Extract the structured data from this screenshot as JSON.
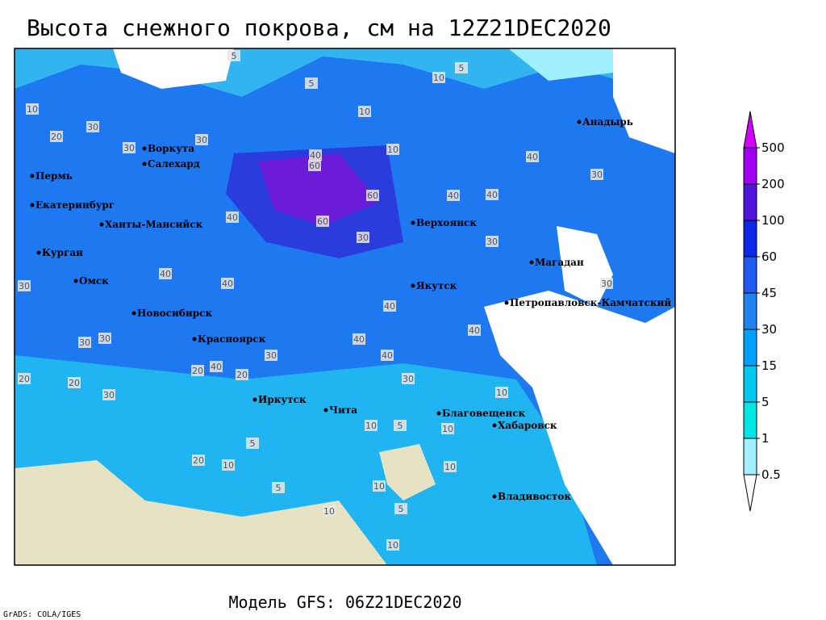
{
  "title": "Высота снежного покрова, см на 12Z21DEC2020",
  "footer": "Модель GFS: 06Z21DEC2020",
  "credit": "GrADS: COLA/IGES",
  "cities": [
    "Воркута",
    "Салехард",
    "Пермь",
    "Екатеринбург",
    "Ханты-Мансийск",
    "Курган",
    "Омск",
    "Новосибирск",
    "Красноярск",
    "Иркутск",
    "Чита",
    "Благовещенск",
    "Хабаровск",
    "Владивосток",
    "Якутск",
    "Верхоянск",
    "Магадан",
    "Петропавловск-Камчатский",
    "Анадырь"
  ],
  "contour_labels": [
    "5",
    "5",
    "10",
    "5",
    "10",
    "10",
    "10",
    "30",
    "20",
    "30",
    "30",
    "40",
    "60",
    "60",
    "40",
    "60",
    "30",
    "40",
    "40",
    "40",
    "40",
    "30",
    "30",
    "20",
    "30",
    "40",
    "40",
    "40",
    "30",
    "40",
    "30",
    "30",
    "20",
    "20",
    "20",
    "10",
    "5",
    "10",
    "5",
    "10",
    "10",
    "5",
    "10",
    "20",
    "10",
    "5",
    "10",
    "10",
    "30",
    "40",
    "40",
    "30",
    "30"
  ],
  "legend": {
    "levels": [
      0.5,
      1,
      5,
      15,
      30,
      45,
      60,
      100,
      200,
      500
    ],
    "colors": [
      "#ffffff",
      "#a0f0ff",
      "#00e6e6",
      "#00c8f0",
      "#00a0ff",
      "#1e82f0",
      "#1e5af0",
      "#0a28e6",
      "#5014dc",
      "#a000f0",
      "#d200ff"
    ]
  }
}
